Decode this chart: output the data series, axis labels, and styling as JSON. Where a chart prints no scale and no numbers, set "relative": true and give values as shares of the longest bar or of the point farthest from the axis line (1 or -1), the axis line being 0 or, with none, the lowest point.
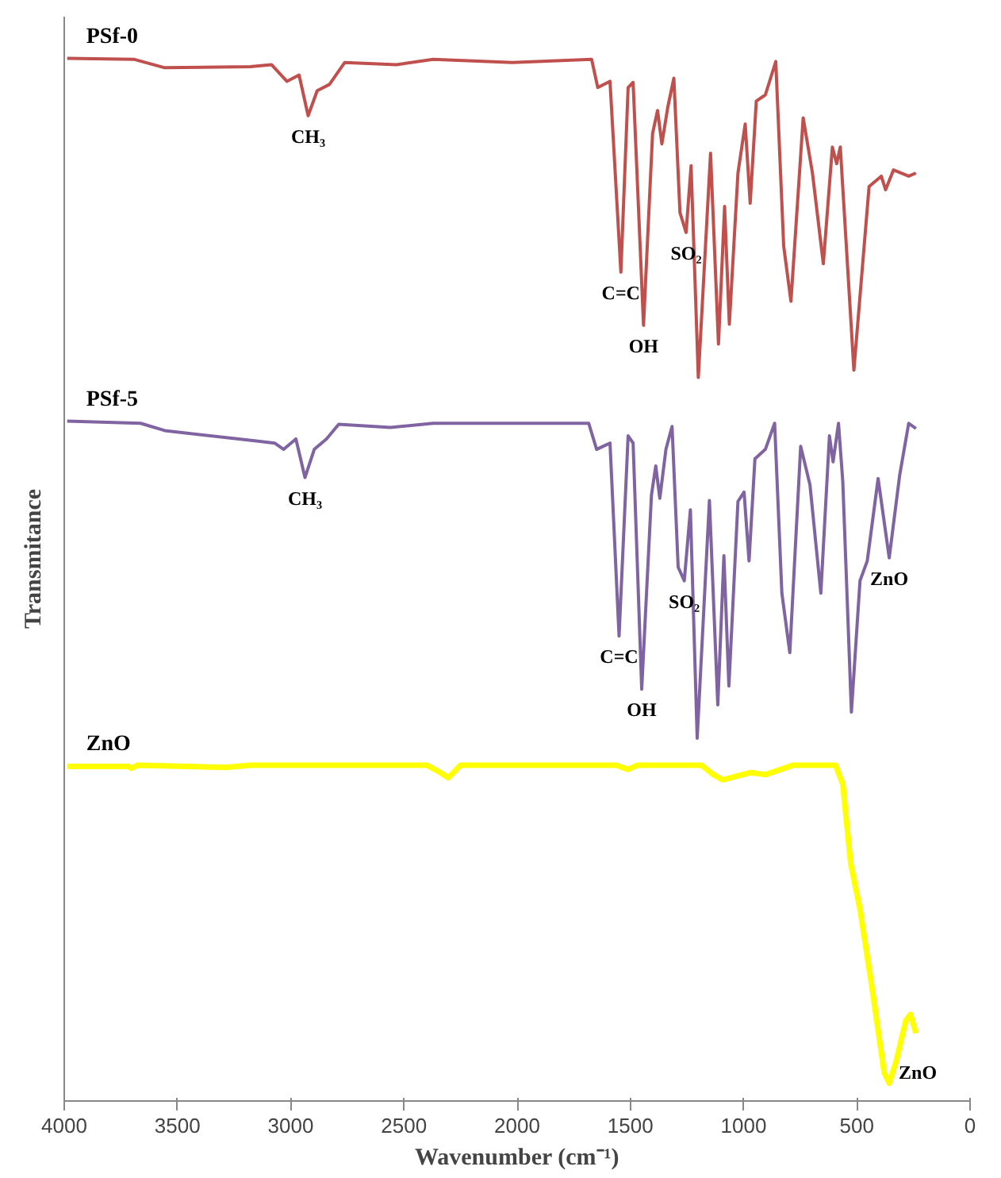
{
  "chart_data": {
    "type": "line",
    "relative": true,
    "xlabel": "Wavenumber (cm⁻¹)",
    "ylabel": "Transmitance",
    "xlim": [
      4000,
      0
    ],
    "xticks": [
      4000,
      3500,
      3000,
      2500,
      2000,
      1500,
      1000,
      500,
      0
    ],
    "grid": false,
    "series": [
      {
        "name": "PSf-0",
        "color": "#c0504d",
        "x": [
          3987,
          3690,
          3556,
          3179,
          3085,
          3017,
          2963,
          2923,
          2883,
          2829,
          2762,
          2533,
          2371,
          2021,
          1671,
          1644,
          1590,
          1542,
          1510,
          1488,
          1442,
          1402,
          1380,
          1361,
          1335,
          1308,
          1281,
          1254,
          1232,
          1200,
          1146,
          1111,
          1084,
          1063,
          1025,
          993,
          971,
          944,
          904,
          858,
          823,
          791,
          737,
          696,
          648,
          608,
          589,
          573,
          513,
          446,
          392,
          373,
          338,
          271,
          239
        ],
        "values": [
          1.0,
          0.999,
          0.991,
          0.992,
          0.994,
          0.978,
          0.984,
          0.945,
          0.969,
          0.975,
          0.996,
          0.994,
          0.999,
          0.996,
          0.999,
          0.972,
          0.978,
          0.795,
          0.972,
          0.977,
          0.744,
          0.928,
          0.95,
          0.918,
          0.953,
          0.981,
          0.852,
          0.833,
          0.897,
          0.694,
          0.909,
          0.726,
          0.858,
          0.745,
          0.89,
          0.937,
          0.861,
          0.959,
          0.965,
          0.997,
          0.82,
          0.767,
          0.943,
          0.89,
          0.803,
          0.915,
          0.899,
          0.915,
          0.701,
          0.877,
          0.887,
          0.874,
          0.893,
          0.887,
          0.89
        ]
      },
      {
        "name": "PSf-5",
        "color": "#8064a2",
        "x": [
          3987,
          3663,
          3556,
          3152,
          3071,
          3031,
          2977,
          2937,
          2896,
          2842,
          2788,
          2560,
          2371,
          2021,
          1684,
          1649,
          1590,
          1550,
          1510,
          1488,
          1450,
          1407,
          1388,
          1370,
          1343,
          1316,
          1289,
          1262,
          1235,
          1205,
          1151,
          1114,
          1087,
          1065,
          1025,
          998,
          976,
          950,
          904,
          863,
          831,
          796,
          748,
          707,
          659,
          621,
          605,
          581,
          562,
          524,
          486,
          454,
          406,
          357,
          311,
          271,
          239
        ],
        "values": [
          0.652,
          0.65,
          0.643,
          0.633,
          0.631,
          0.625,
          0.635,
          0.598,
          0.625,
          0.635,
          0.649,
          0.646,
          0.65,
          0.65,
          0.65,
          0.625,
          0.631,
          0.446,
          0.638,
          0.631,
          0.395,
          0.581,
          0.609,
          0.578,
          0.625,
          0.647,
          0.512,
          0.499,
          0.567,
          0.348,
          0.576,
          0.38,
          0.523,
          0.398,
          0.575,
          0.584,
          0.518,
          0.616,
          0.625,
          0.65,
          0.487,
          0.43,
          0.628,
          0.591,
          0.487,
          0.638,
          0.613,
          0.65,
          0.594,
          0.373,
          0.499,
          0.518,
          0.597,
          0.521,
          0.6,
          0.65,
          0.645
        ]
      },
      {
        "name": "ZnO",
        "color": "#ffff00",
        "x": [
          3987,
          3717,
          3704,
          3677,
          3287,
          3179,
          2398,
          2339,
          2304,
          2250,
          1563,
          1510,
          1469,
          1186,
          1133,
          1092,
          971,
          904,
          783,
          594,
          562,
          527,
          486,
          433,
          379,
          357,
          325,
          284,
          263,
          239
        ],
        "values": [
          0.321,
          0.321,
          0.319,
          0.322,
          0.32,
          0.322,
          0.322,
          0.315,
          0.31,
          0.322,
          0.322,
          0.318,
          0.322,
          0.322,
          0.313,
          0.308,
          0.315,
          0.313,
          0.322,
          0.322,
          0.304,
          0.228,
          0.184,
          0.109,
          0.027,
          0.017,
          0.039,
          0.077,
          0.083,
          0.065
        ]
      }
    ],
    "annotations": [
      {
        "text": "CH₃",
        "x": 2923,
        "y": 0.945
      },
      {
        "text": "C=C",
        "x": 1542,
        "y": 0.795
      },
      {
        "text": "OH",
        "x": 1442,
        "y": 0.744
      },
      {
        "text": "SO₂",
        "x": 1254,
        "y": 0.833
      },
      {
        "text": "CH₃",
        "x": 2937,
        "y": 0.598
      },
      {
        "text": "C=C",
        "x": 1550,
        "y": 0.446
      },
      {
        "text": "OH",
        "x": 1450,
        "y": 0.395
      },
      {
        "text": "SO₂",
        "x": 1262,
        "y": 0.499
      },
      {
        "text": "ZnO",
        "x": 357,
        "y": 0.521
      },
      {
        "text": "ZnO",
        "x": 357,
        "y": 0.017
      }
    ]
  }
}
